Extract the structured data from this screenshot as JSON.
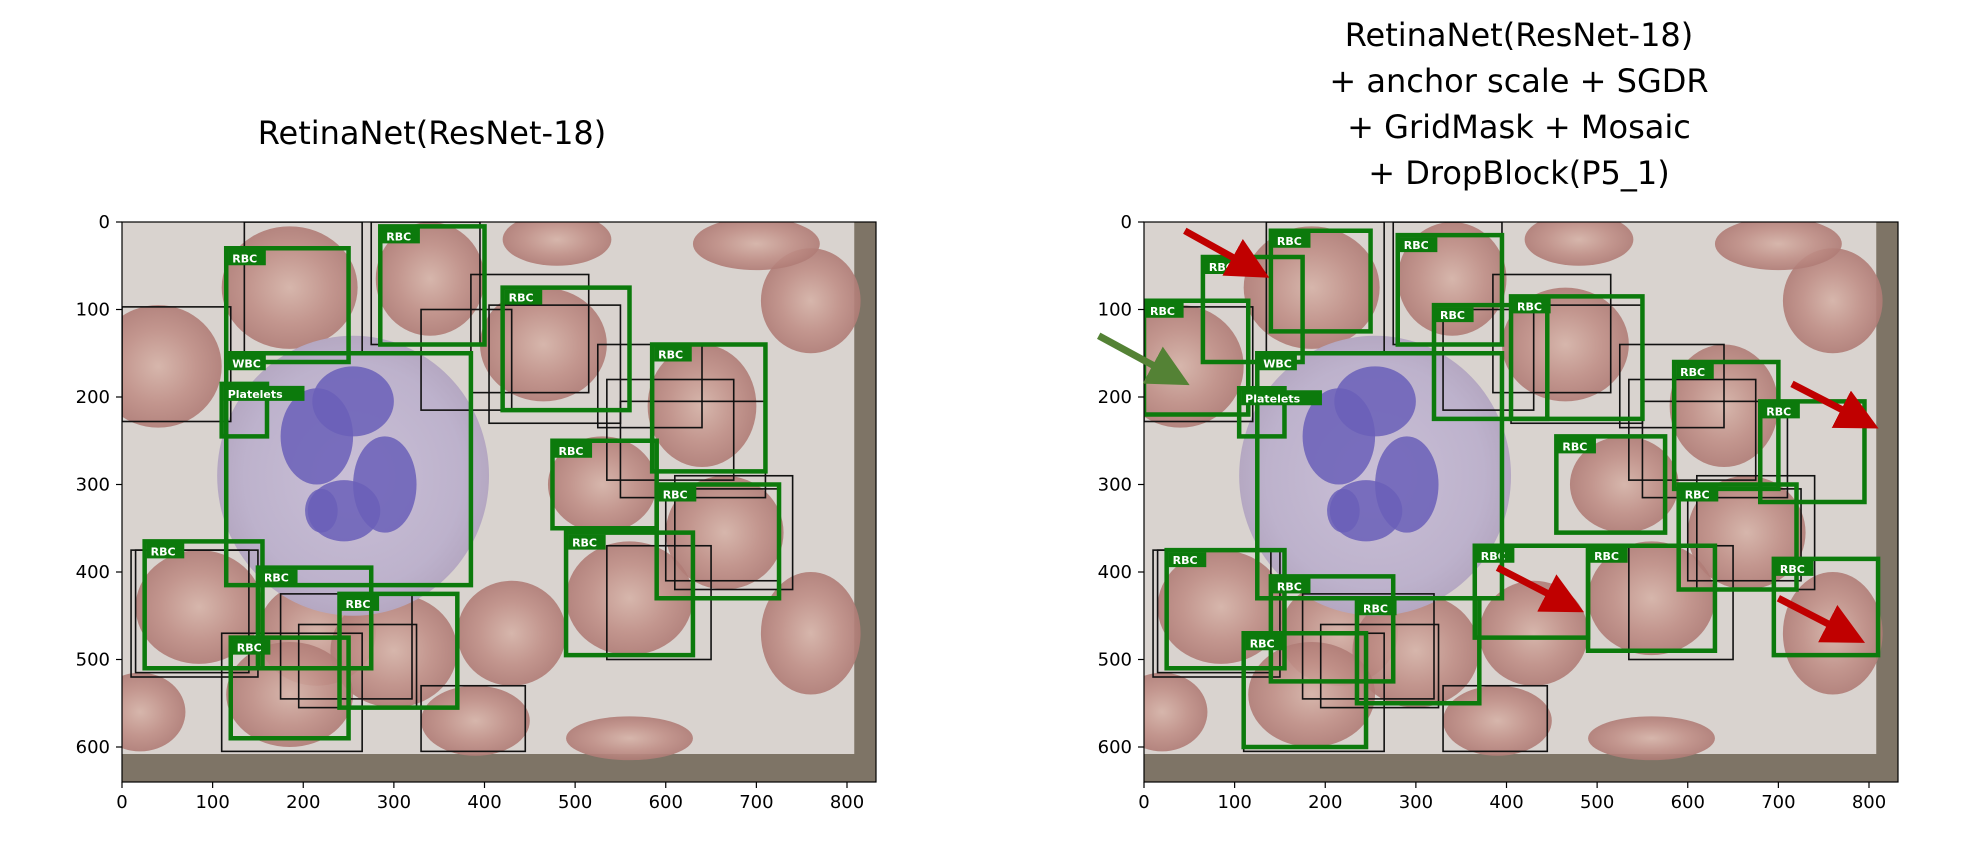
{
  "figure": {
    "panels": [
      {
        "id": "left",
        "title_lines": [
          "RetinaNet(ResNet-18)"
        ],
        "x_axis": {
          "min": 0,
          "max": 832,
          "ticks": [
            0,
            100,
            200,
            300,
            400,
            500,
            600,
            700,
            800
          ]
        },
        "y_axis": {
          "min": 0,
          "max": 640,
          "inverted": true,
          "ticks": [
            0,
            100,
            200,
            300,
            400,
            500,
            600
          ]
        },
        "ground_truth_boxes": [
          [
            135,
            0,
            265,
            150
          ],
          [
            0,
            97,
            120,
            228
          ],
          [
            330,
            100,
            430,
            215
          ],
          [
            385,
            60,
            515,
            195
          ],
          [
            405,
            95,
            550,
            230
          ],
          [
            525,
            140,
            640,
            235
          ],
          [
            535,
            180,
            675,
            295
          ],
          [
            550,
            205,
            710,
            315
          ],
          [
            610,
            290,
            740,
            420
          ],
          [
            600,
            305,
            725,
            410
          ],
          [
            15,
            375,
            140,
            515
          ],
          [
            110,
            470,
            265,
            605
          ],
          [
            330,
            530,
            445,
            605
          ],
          [
            175,
            425,
            320,
            545
          ],
          [
            195,
            460,
            325,
            555
          ],
          [
            535,
            370,
            650,
            500
          ],
          [
            275,
            0,
            395,
            140
          ],
          [
            10,
            375,
            150,
            520
          ]
        ],
        "predictions": [
          {
            "label": "RBC",
            "box": [
              115,
              30,
              250,
              160
            ]
          },
          {
            "label": "RBC",
            "box": [
              285,
              5,
              400,
              140
            ]
          },
          {
            "label": "RBC",
            "box": [
              420,
              75,
              560,
              215
            ]
          },
          {
            "label": "RBC",
            "box": [
              585,
              140,
              710,
              285
            ]
          },
          {
            "label": "RBC",
            "box": [
              475,
              250,
              590,
              350
            ]
          },
          {
            "label": "RBC",
            "box": [
              590,
              300,
              725,
              430
            ]
          },
          {
            "label": "RBC",
            "box": [
              490,
              355,
              630,
              495
            ]
          },
          {
            "label": "RBC",
            "box": [
              25,
              365,
              155,
              510
            ]
          },
          {
            "label": "RBC",
            "box": [
              150,
              395,
              275,
              510
            ]
          },
          {
            "label": "RBC",
            "box": [
              240,
              425,
              370,
              555
            ]
          },
          {
            "label": "RBC",
            "box": [
              120,
              475,
              250,
              590
            ]
          },
          {
            "label": "WBC",
            "box": [
              115,
              150,
              385,
              415
            ]
          },
          {
            "label": "Platelets",
            "box": [
              110,
              185,
              160,
              245
            ]
          }
        ]
      },
      {
        "id": "right",
        "title_lines": [
          "RetinaNet(ResNet-18)",
          "+ anchor scale + SGDR",
          "+ GridMask + Mosaic",
          "+ DropBlock(P5_1)"
        ],
        "x_axis": {
          "min": 0,
          "max": 832,
          "ticks": [
            0,
            100,
            200,
            300,
            400,
            500,
            600,
            700,
            800
          ]
        },
        "y_axis": {
          "min": 0,
          "max": 640,
          "inverted": true,
          "ticks": [
            0,
            100,
            200,
            300,
            400,
            500,
            600
          ]
        },
        "ground_truth_boxes": [
          [
            135,
            0,
            265,
            150
          ],
          [
            0,
            97,
            120,
            228
          ],
          [
            330,
            100,
            430,
            215
          ],
          [
            385,
            60,
            515,
            195
          ],
          [
            405,
            95,
            550,
            230
          ],
          [
            525,
            140,
            640,
            235
          ],
          [
            535,
            180,
            675,
            295
          ],
          [
            550,
            205,
            710,
            315
          ],
          [
            610,
            290,
            740,
            420
          ],
          [
            600,
            305,
            725,
            410
          ],
          [
            15,
            375,
            140,
            515
          ],
          [
            110,
            470,
            265,
            605
          ],
          [
            330,
            530,
            445,
            605
          ],
          [
            175,
            425,
            320,
            545
          ],
          [
            195,
            460,
            325,
            555
          ],
          [
            535,
            370,
            650,
            500
          ],
          [
            275,
            0,
            395,
            140
          ],
          [
            10,
            375,
            150,
            520
          ]
        ],
        "predictions": [
          {
            "label": "RBC",
            "box": [
              140,
              10,
              250,
              125
            ]
          },
          {
            "label": "RBC",
            "box": [
              65,
              40,
              175,
              160
            ]
          },
          {
            "label": "RBC",
            "box": [
              280,
              15,
              395,
              140
            ]
          },
          {
            "label": "RBC",
            "box": [
              320,
              95,
              445,
              225
            ]
          },
          {
            "label": "RBC",
            "box": [
              405,
              85,
              550,
              225
            ]
          },
          {
            "label": "RBC",
            "box": [
              0,
              90,
              115,
              220
            ]
          },
          {
            "label": "RBC",
            "box": [
              585,
              160,
              700,
              305
            ]
          },
          {
            "label": "RBC",
            "box": [
              680,
              205,
              795,
              320
            ]
          },
          {
            "label": "RBC",
            "box": [
              455,
              245,
              575,
              355
            ]
          },
          {
            "label": "RBC",
            "box": [
              590,
              300,
              720,
              420
            ]
          },
          {
            "label": "RBC",
            "box": [
              365,
              370,
              490,
              475
            ]
          },
          {
            "label": "RBC",
            "box": [
              490,
              370,
              630,
              490
            ]
          },
          {
            "label": "RBC",
            "box": [
              695,
              385,
              810,
              495
            ]
          },
          {
            "label": "RBC",
            "box": [
              25,
              375,
              155,
              510
            ]
          },
          {
            "label": "RBC",
            "box": [
              140,
              405,
              275,
              525
            ]
          },
          {
            "label": "RBC",
            "box": [
              235,
              430,
              370,
              550
            ]
          },
          {
            "label": "RBC",
            "box": [
              110,
              470,
              245,
              600
            ]
          },
          {
            "label": "WBC",
            "box": [
              125,
              150,
              395,
              430
            ]
          },
          {
            "label": "Platelets",
            "box": [
              105,
              190,
              155,
              245
            ]
          }
        ],
        "highlight_arrows": [
          {
            "color": "red",
            "from": [
              45,
              10
            ],
            "to": [
              118,
              52
            ]
          },
          {
            "color": "green",
            "from": [
              -50,
              130
            ],
            "to": [
              30,
              175
            ]
          },
          {
            "color": "red",
            "from": [
              715,
              185
            ],
            "to": [
              790,
              225
            ]
          },
          {
            "color": "red",
            "from": [
              390,
              395
            ],
            "to": [
              465,
              435
            ]
          },
          {
            "color": "red",
            "from": [
              700,
              430
            ],
            "to": [
              775,
              470
            ]
          }
        ]
      }
    ]
  },
  "colors": {
    "prediction_box": "#0c7a0c",
    "ground_truth_box": "#111111",
    "arrow_red": "#c00000",
    "arrow_green": "#548235",
    "image_pad": "#7e7466"
  }
}
